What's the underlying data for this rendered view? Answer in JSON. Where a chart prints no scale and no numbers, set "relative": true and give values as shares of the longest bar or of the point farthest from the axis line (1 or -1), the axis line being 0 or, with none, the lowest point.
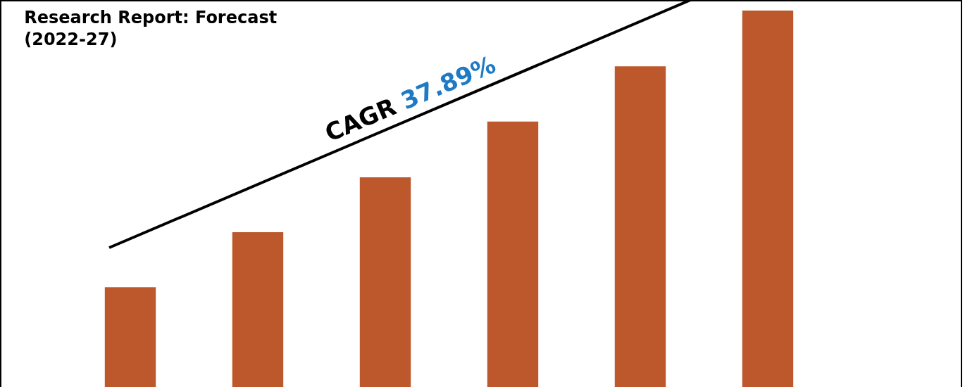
{
  "chart_data": {
    "type": "bar",
    "relative": true,
    "title": "Research Report: Forecast\n(2022-27)",
    "categories": [
      null,
      null,
      null,
      null,
      null,
      null
    ],
    "values": [
      0.265,
      0.411,
      0.557,
      0.705,
      0.852,
      1.0
    ],
    "color": "#bc582c",
    "annotations": [
      "CAGR 37.89%"
    ]
  }
}
